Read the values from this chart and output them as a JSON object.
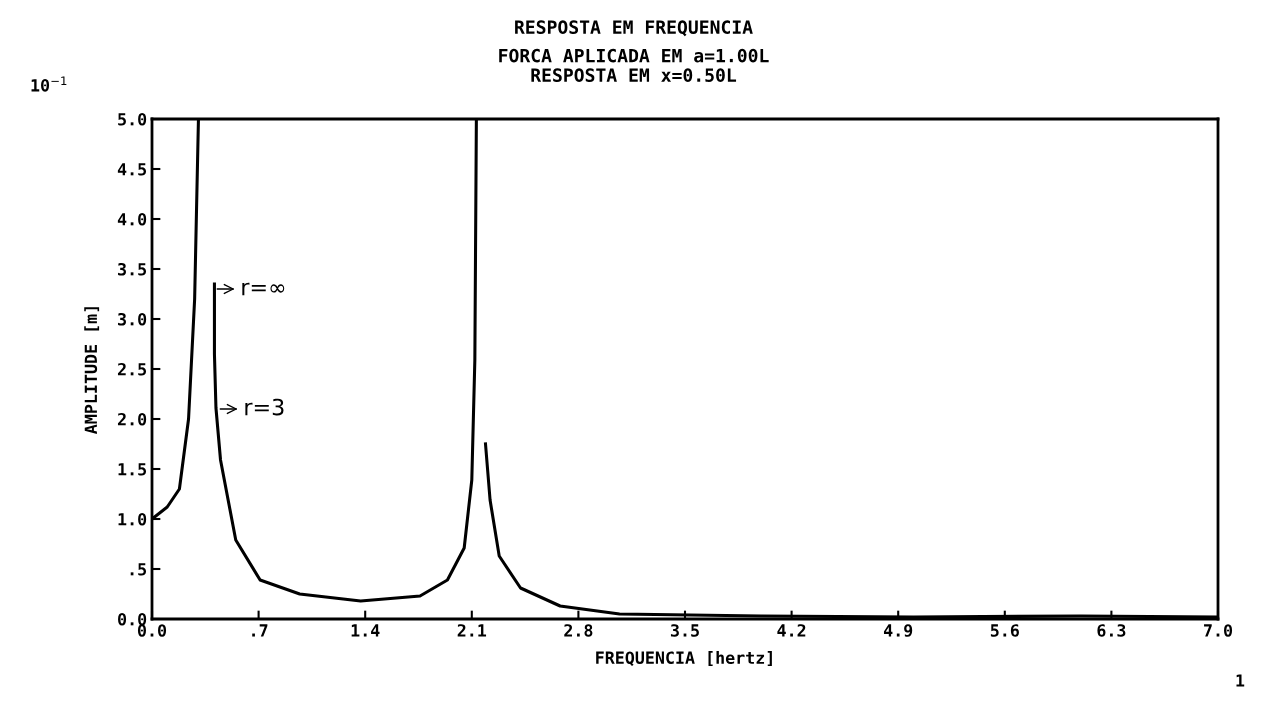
{
  "chart_data": {
    "type": "line",
    "title": "RESPOSTA EM FREQUENCIA\nFORCA APLICADA EM a=1.00L",
    "subtitle": "RESPOSTA EM x=0.50L",
    "xlabel": "FREQUENCIA [hertz]",
    "ylabel": "AMPLITUDE [m]",
    "series": [
      {
        "color": "#000000",
        "x": [
          0.0,
          0.1,
          0.18,
          0.24,
          0.28,
          0.305,
          null,
          0.41,
          0.41,
          0.42,
          0.45,
          0.55,
          0.71,
          0.97,
          1.37,
          1.76,
          1.94,
          2.05,
          2.1,
          2.12,
          2.13,
          null,
          2.19,
          2.22,
          2.28,
          2.42,
          2.68,
          3.07,
          4.0,
          5.0,
          6.1,
          7.0
        ],
        "values": [
          1.0,
          1.12,
          1.3,
          2.0,
          3.2,
          5.0,
          null,
          3.35,
          2.65,
          2.11,
          1.59,
          0.79,
          0.39,
          0.25,
          0.18,
          0.23,
          0.39,
          0.71,
          1.39,
          2.59,
          5.0,
          null,
          1.75,
          1.19,
          0.63,
          0.31,
          0.13,
          0.05,
          0.03,
          0.02,
          0.03,
          0.02
        ]
      }
    ],
    "xlim": [
      0,
      7.0
    ],
    "ylim": [
      0,
      5.0
    ],
    "xticks": [
      {
        "value": 0,
        "label": "0.0"
      },
      {
        "value": 0.7,
        "label": ".7"
      },
      1.4,
      2.1,
      2.8,
      3.5,
      4.2,
      4.9,
      5.6,
      6.3,
      {
        "value": 7.0,
        "label": "7.0"
      }
    ],
    "yticks": [
      {
        "value": 0,
        "label": "0.0"
      },
      {
        "value": 0.5,
        "label": ".5"
      },
      {
        "value": 1.0,
        "label": "1.0"
      },
      1.5,
      {
        "value": 2.0,
        "label": "2.0"
      },
      2.5,
      {
        "value": 3.0,
        "label": "3.0"
      },
      3.5,
      {
        "value": 4.0,
        "label": "4.0"
      },
      4.5,
      {
        "value": 5.0,
        "label": "5.0"
      }
    ],
    "annotations": [
      {
        "text": "r=∞",
        "x": 0.41,
        "y": 3.3
      },
      {
        "text": "r=3",
        "x": 0.43,
        "y": 2.1
      },
      "10$^{−1}$",
      "1"
    ],
    "grid": false,
    "legend": false
  }
}
